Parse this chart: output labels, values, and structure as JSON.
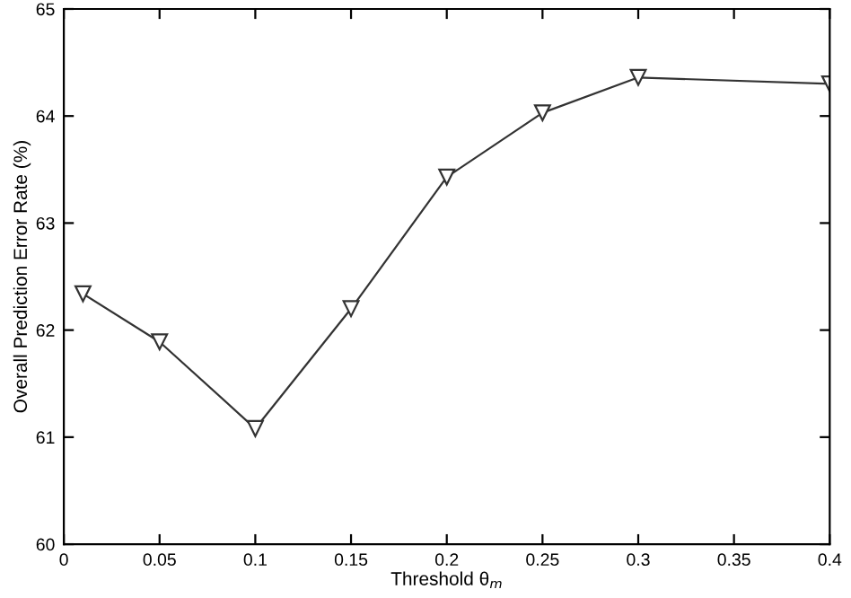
{
  "chart_data": {
    "type": "line",
    "xlabel": "Threshold θ$_{m}$",
    "ylabel": "Overall Prediction Error Rate (%)",
    "x": [
      0.01,
      0.05,
      0.1,
      0.15,
      0.2,
      0.25,
      0.3,
      0.4
    ],
    "series": [
      {
        "color": "#333333",
        "values": [
          62.34,
          61.89,
          61.08,
          62.2,
          63.43,
          64.03,
          64.36,
          64.3
        ]
      }
    ],
    "xlim": [
      0,
      0.4
    ],
    "xticks": [
      0,
      0.05,
      0.1,
      0.15,
      0.2,
      0.25,
      0.3,
      0.35,
      0.4
    ],
    "ylim": [
      60,
      65
    ],
    "yticks": [
      60,
      61,
      62,
      63,
      64,
      65
    ],
    "marker": "triangle",
    "line_style": "solid",
    "grid": false,
    "legend": false
  }
}
